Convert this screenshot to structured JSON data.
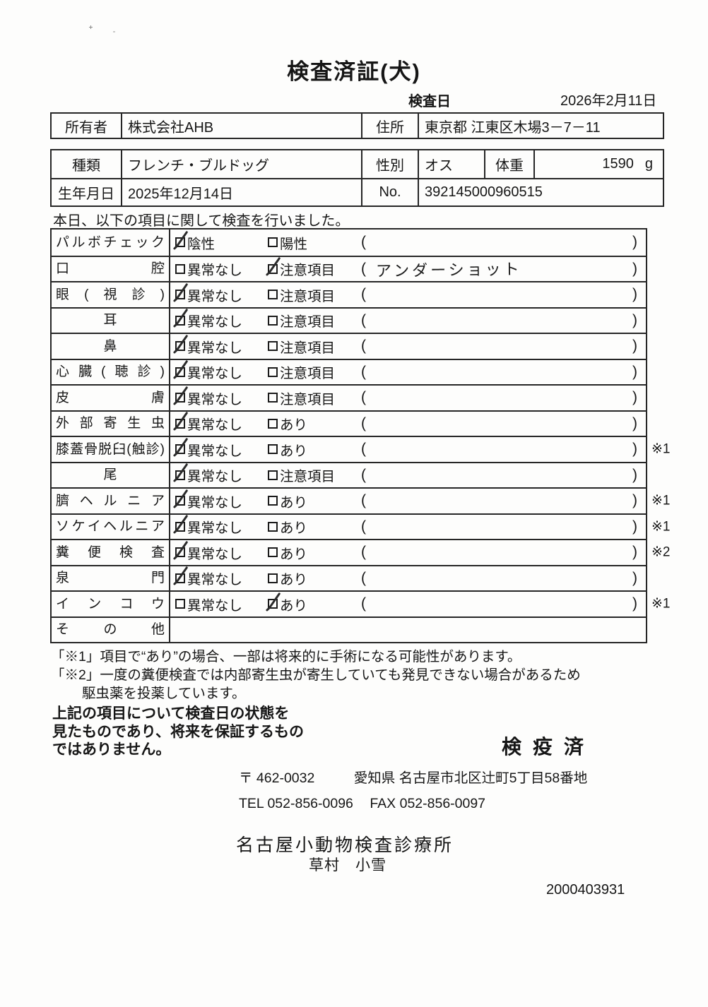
{
  "doc": {
    "title": "検査済証(犬)",
    "exam_date_label": "検査日",
    "exam_date_value": "2026年2月11日",
    "serial": "2000403931"
  },
  "owner": {
    "owner_label": "所有者",
    "owner_value": "株式会社AHB",
    "address_label": "住所",
    "address_value": "東京都 江東区木場3－7－11"
  },
  "animal": {
    "breed_label": "種類",
    "breed_value": "フレンチ・ブルドッグ",
    "sex_label": "性別",
    "sex_value": "オス",
    "weight_label": "体重",
    "weight_value": "1590",
    "weight_unit": "g",
    "birth_label": "生年月日",
    "birth_value": "2025年12月14日",
    "no_label": "No.",
    "no_value": "392145000960515"
  },
  "checklist": {
    "intro": "本日、以下の項目に関して検査を行いました。",
    "paren_open": "(",
    "paren_close": ")",
    "rows": [
      {
        "label": "パルボチェック",
        "lclass": "lj",
        "opt1": "陰性",
        "s1": "checked",
        "opt2": "陽性",
        "s2": "",
        "note": "",
        "remark": "",
        "rclass": ""
      },
      {
        "label": "口腔",
        "lclass": "lj",
        "opt1": "異常なし",
        "s1": "",
        "opt2": "注意項目",
        "s2": "checked",
        "note": "アンダーショット",
        "remark": "",
        "rclass": ""
      },
      {
        "label": "眼(視診)",
        "lclass": "lj",
        "opt1": "異常なし",
        "s1": "checked",
        "opt2": "注意項目",
        "s2": "",
        "note": "",
        "remark": "",
        "rclass": ""
      },
      {
        "label": "耳",
        "lclass": "lc",
        "opt1": "異常なし",
        "s1": "checked",
        "opt2": "注意項目",
        "s2": "",
        "note": "",
        "remark": "",
        "rclass": ""
      },
      {
        "label": "鼻",
        "lclass": "lc",
        "opt1": "異常なし",
        "s1": "checked",
        "opt2": "注意項目",
        "s2": "",
        "note": "",
        "remark": "",
        "rclass": ""
      },
      {
        "label": "心臓(聴診)",
        "lclass": "lj",
        "opt1": "異常なし",
        "s1": "checked",
        "opt2": "注意項目",
        "s2": "",
        "note": "",
        "remark": "",
        "rclass": ""
      },
      {
        "label": "皮膚",
        "lclass": "lj",
        "opt1": "異常なし",
        "s1": "checked",
        "opt2": "注意項目",
        "s2": "",
        "note": "",
        "remark": "",
        "rclass": ""
      },
      {
        "label": "外部寄生虫",
        "lclass": "lj",
        "opt1": "異常なし",
        "s1": "checked",
        "opt2": "あり",
        "s2": "",
        "note": "",
        "remark": "",
        "rclass": ""
      },
      {
        "label": "膝蓋骨脱臼(触診)",
        "lclass": "lj",
        "opt1": "異常なし",
        "s1": "checked",
        "opt2": "あり",
        "s2": "",
        "note": "",
        "remark": "※1",
        "rclass": ""
      },
      {
        "label": "尾",
        "lclass": "lc",
        "opt1": "異常なし",
        "s1": "checked",
        "opt2": "注意項目",
        "s2": "",
        "note": "",
        "remark": "",
        "rclass": ""
      },
      {
        "label": "臍ヘルニア",
        "lclass": "lj",
        "opt1": "異常なし",
        "s1": "checked",
        "opt2": "あり",
        "s2": "",
        "note": "",
        "remark": "※1",
        "rclass": ""
      },
      {
        "label": "ソケイヘルニア",
        "lclass": "lj",
        "opt1": "異常なし",
        "s1": "checked",
        "opt2": "あり",
        "s2": "",
        "note": "",
        "remark": "※1",
        "rclass": ""
      },
      {
        "label": "糞便検査",
        "lclass": "lj",
        "opt1": "異常なし",
        "s1": "checked",
        "opt2": "あり",
        "s2": "",
        "note": "",
        "remark": "※2",
        "rclass": ""
      },
      {
        "label": "泉門",
        "lclass": "lj",
        "opt1": "異常なし",
        "s1": "checked",
        "opt2": "あり",
        "s2": "",
        "note": "",
        "remark": "",
        "rclass": ""
      },
      {
        "label": "インコウ",
        "lclass": "lj",
        "opt1": "異常なし",
        "s1": "",
        "opt2": "あり",
        "s2": "checked",
        "note": "",
        "remark": "※1",
        "rclass": ""
      },
      {
        "label": "その他",
        "lclass": "lj",
        "opt1": "",
        "s1": "",
        "opt2": "",
        "s2": "",
        "note": "",
        "remark": "",
        "rclass": "noopts"
      }
    ]
  },
  "footnotes": {
    "line1": "「※1」項目で“あり”の場合、一部は将来的に手術になる可能性があります。",
    "line2": "「※2」一度の糞便検査では内部寄生虫が寄生していても発見できない場合があるため",
    "line3": "駆虫薬を投薬しています。"
  },
  "disclaimer": {
    "line1": "上記の項目について検査日の状態を",
    "line2": "見たものであり、将来を保証するもの",
    "line3": "ではありません。"
  },
  "clinic": {
    "quarantine_stamp": "検疫済",
    "postal": "〒 462-0032",
    "address": "愛知県 名古屋市北区辻町5丁目58番地",
    "tel": "TEL 052-856-0096",
    "fax": "FAX 052-856-0097",
    "name": "名古屋小動物検査診療所",
    "vet_name": "草村　小雪"
  }
}
